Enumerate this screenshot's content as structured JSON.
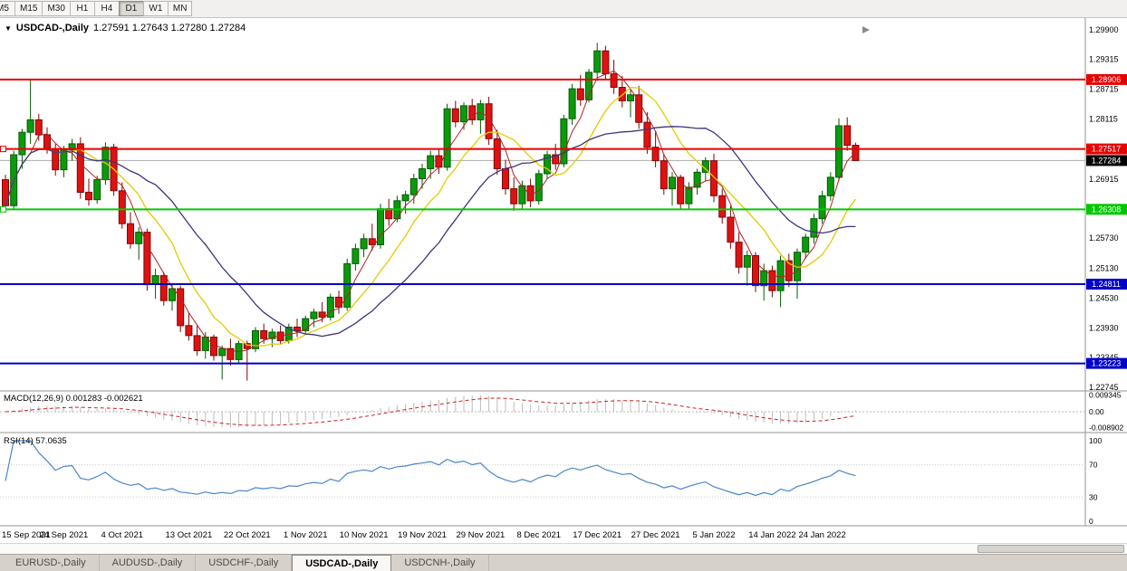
{
  "toolbar": {
    "timeframes": [
      "M5",
      "M15",
      "M30",
      "H1",
      "H4",
      "D1",
      "W1",
      "MN"
    ],
    "active": "D1"
  },
  "chart": {
    "symbol_label": "USDCAD-,Daily",
    "ohlc_label": "1.27591 1.27643 1.27280 1.27284"
  },
  "tabs": {
    "items": [
      "EURUSD-,Daily",
      "AUDUSD-,Daily",
      "USDCHF-,Daily",
      "USDCAD-,Daily",
      "USDCNH-,Daily"
    ],
    "active_index": 3
  },
  "chart_data": {
    "type": "candlestick",
    "symbol": "USDCAD",
    "timeframe": "Daily",
    "current_ohlc": {
      "open": "1.27591",
      "high": "1.27643",
      "low": "1.27280",
      "close": "1.27284"
    },
    "y_axis_ticks": [
      "1.29900",
      "1.29315",
      "1.28715",
      "1.28115",
      "1.26915",
      "1.25730",
      "1.25130",
      "1.24530",
      "1.23930",
      "1.23345",
      "1.22745"
    ],
    "horizontal_levels": [
      {
        "label": "1.28906",
        "value": 1.28906,
        "color": "#e80000",
        "type": "resistance"
      },
      {
        "label": "1.27517",
        "value": 1.27517,
        "color": "#e80000",
        "type": "resistance"
      },
      {
        "label": "1.26308",
        "value": 1.26308,
        "color": "#00c800",
        "type": "support"
      },
      {
        "label": "1.24811",
        "value": 1.24811,
        "color": "#0000c8",
        "type": "support"
      },
      {
        "label": "1.23223",
        "value": 1.23223,
        "color": "#0000c8",
        "type": "support"
      }
    ],
    "current_price": {
      "label": "1.27284",
      "value": 1.27284,
      "bg": "#000000"
    },
    "date_labels": [
      {
        "i": 0,
        "t": "15 Sep 2021"
      },
      {
        "i": 7,
        "t": "24 Sep 2021"
      },
      {
        "i": 14,
        "t": "4 Oct 2021"
      },
      {
        "i": 22,
        "t": "13 Oct 2021"
      },
      {
        "i": 29,
        "t": "22 Oct 2021"
      },
      {
        "i": 36,
        "t": "1 Nov 2021"
      },
      {
        "i": 43,
        "t": "10 Nov 2021"
      },
      {
        "i": 50,
        "t": "19 Nov 2021"
      },
      {
        "i": 57,
        "t": "29 Nov 2021"
      },
      {
        "i": 64,
        "t": "8 Dec 2021"
      },
      {
        "i": 71,
        "t": "17 Dec 2021"
      },
      {
        "i": 78,
        "t": "27 Dec 2021"
      },
      {
        "i": 85,
        "t": "5 Jan 2022"
      },
      {
        "i": 92,
        "t": "14 Jan 2022"
      },
      {
        "i": 98,
        "t": "24 Jan 2022"
      }
    ],
    "moving_averages": [
      {
        "period": 4,
        "color": "#b22222",
        "width": 1
      },
      {
        "period": 9,
        "color": "#e2cc00",
        "width": 1.3
      },
      {
        "period": 18,
        "color": "#3d3480",
        "width": 1.3
      }
    ],
    "macd": {
      "label": "MACD(12,26,9)",
      "main": "0.001283",
      "signal": "-0.002621",
      "fast": 12,
      "slow": 26,
      "smoothing": 9,
      "axis_ticks": [
        "0.009345",
        "0.00",
        "-0.008902"
      ]
    },
    "rsi": {
      "label": "RSI(14)",
      "value": "57.0635",
      "period": 14,
      "axis_ticks": [
        "100",
        "70",
        "30",
        "0"
      ]
    },
    "candles": [
      [
        1.269,
        1.27,
        1.2628,
        1.2638
      ],
      [
        1.2638,
        1.2748,
        1.2632,
        1.274
      ],
      [
        1.274,
        1.2792,
        1.2712,
        1.2785
      ],
      [
        1.2785,
        1.289,
        1.2762,
        1.281
      ],
      [
        1.281,
        1.2822,
        1.2768,
        1.278
      ],
      [
        1.278,
        1.2795,
        1.2742,
        1.2752
      ],
      [
        1.2752,
        1.2762,
        1.2698,
        1.271
      ],
      [
        1.271,
        1.2758,
        1.2695,
        1.275
      ],
      [
        1.275,
        1.2772,
        1.2728,
        1.2762
      ],
      [
        1.2762,
        1.2775,
        1.2652,
        1.2665
      ],
      [
        1.2665,
        1.2692,
        1.2638,
        1.265
      ],
      [
        1.265,
        1.2698,
        1.2642,
        1.269
      ],
      [
        1.269,
        1.2765,
        1.268,
        1.2755
      ],
      [
        1.2755,
        1.2762,
        1.2658,
        1.2668
      ],
      [
        1.2668,
        1.2685,
        1.2592,
        1.2602
      ],
      [
        1.2602,
        1.2625,
        1.2552,
        1.2562
      ],
      [
        1.2562,
        1.2595,
        1.253,
        1.2585
      ],
      [
        1.2585,
        1.2592,
        1.2468,
        1.248
      ],
      [
        1.248,
        1.2512,
        1.2452,
        1.2498
      ],
      [
        1.2498,
        1.2505,
        1.2438,
        1.2448
      ],
      [
        1.2448,
        1.2482,
        1.2428,
        1.2472
      ],
      [
        1.2472,
        1.2478,
        1.2385,
        1.2398
      ],
      [
        1.2398,
        1.2425,
        1.2368,
        1.2378
      ],
      [
        1.2378,
        1.2398,
        1.2338,
        1.2348
      ],
      [
        1.2348,
        1.2385,
        1.2332,
        1.2375
      ],
      [
        1.2375,
        1.238,
        1.2328,
        1.2338
      ],
      [
        1.2338,
        1.2358,
        1.229,
        1.2352
      ],
      [
        1.2352,
        1.2372,
        1.2318,
        1.233
      ],
      [
        1.233,
        1.2368,
        1.2322,
        1.2362
      ],
      [
        1.2362,
        1.2368,
        1.2288,
        1.2352
      ],
      [
        1.2352,
        1.2395,
        1.2345,
        1.2388
      ],
      [
        1.2388,
        1.2402,
        1.2362,
        1.2372
      ],
      [
        1.2372,
        1.2392,
        1.2355,
        1.2385
      ],
      [
        1.2385,
        1.2398,
        1.236,
        1.2368
      ],
      [
        1.2368,
        1.2402,
        1.2362,
        1.2395
      ],
      [
        1.2395,
        1.2412,
        1.2375,
        1.2388
      ],
      [
        1.2388,
        1.2418,
        1.238,
        1.2412
      ],
      [
        1.2412,
        1.2432,
        1.2395,
        1.2425
      ],
      [
        1.2425,
        1.2445,
        1.2405,
        1.2415
      ],
      [
        1.2415,
        1.2462,
        1.2408,
        1.2455
      ],
      [
        1.2455,
        1.2468,
        1.2422,
        1.2435
      ],
      [
        1.2435,
        1.2532,
        1.2428,
        1.2522
      ],
      [
        1.2522,
        1.2562,
        1.2508,
        1.2552
      ],
      [
        1.2552,
        1.2582,
        1.2535,
        1.2572
      ],
      [
        1.2572,
        1.2602,
        1.2548,
        1.256
      ],
      [
        1.256,
        1.2642,
        1.2552,
        1.2632
      ],
      [
        1.2632,
        1.2652,
        1.2598,
        1.2612
      ],
      [
        1.2612,
        1.2658,
        1.2605,
        1.2648
      ],
      [
        1.2648,
        1.2668,
        1.2622,
        1.266
      ],
      [
        1.266,
        1.2702,
        1.2642,
        1.2692
      ],
      [
        1.2692,
        1.2722,
        1.2672,
        1.2712
      ],
      [
        1.2712,
        1.2748,
        1.2692,
        1.2738
      ],
      [
        1.2738,
        1.2752,
        1.2702,
        1.2715
      ],
      [
        1.2715,
        1.2842,
        1.2708,
        1.2832
      ],
      [
        1.2832,
        1.2848,
        1.2795,
        1.2806
      ],
      [
        1.2806,
        1.2845,
        1.279,
        1.2838
      ],
      [
        1.2838,
        1.2852,
        1.28,
        1.281
      ],
      [
        1.281,
        1.285,
        1.2782,
        1.2842
      ],
      [
        1.2842,
        1.2856,
        1.276,
        1.2772
      ],
      [
        1.2772,
        1.279,
        1.27,
        1.2712
      ],
      [
        1.2712,
        1.273,
        1.266,
        1.2672
      ],
      [
        1.2672,
        1.2695,
        1.2628,
        1.2642
      ],
      [
        1.2642,
        1.2688,
        1.263,
        1.2678
      ],
      [
        1.2678,
        1.2692,
        1.2635,
        1.2648
      ],
      [
        1.2648,
        1.271,
        1.264,
        1.2702
      ],
      [
        1.2702,
        1.2748,
        1.2692,
        1.274
      ],
      [
        1.274,
        1.2762,
        1.271,
        1.2722
      ],
      [
        1.2722,
        1.282,
        1.2715,
        1.2812
      ],
      [
        1.2812,
        1.2882,
        1.28,
        1.2872
      ],
      [
        1.2872,
        1.29,
        1.2838,
        1.285
      ],
      [
        1.285,
        1.2912,
        1.2845,
        1.2905
      ],
      [
        1.2905,
        1.2964,
        1.2888,
        1.2948
      ],
      [
        1.2948,
        1.2958,
        1.289,
        1.2902
      ],
      [
        1.2902,
        1.293,
        1.2862,
        1.2875
      ],
      [
        1.2875,
        1.2898,
        1.2835,
        1.2848
      ],
      [
        1.2848,
        1.2872,
        1.2815,
        1.286
      ],
      [
        1.286,
        1.2878,
        1.2792,
        1.2805
      ],
      [
        1.2805,
        1.2825,
        1.2742,
        1.2755
      ],
      [
        1.2755,
        1.2788,
        1.2715,
        1.2728
      ],
      [
        1.2728,
        1.2742,
        1.266,
        1.2672
      ],
      [
        1.2672,
        1.2705,
        1.2638,
        1.2695
      ],
      [
        1.2695,
        1.27,
        1.263,
        1.2642
      ],
      [
        1.2642,
        1.2685,
        1.2632,
        1.2675
      ],
      [
        1.2675,
        1.2712,
        1.266,
        1.2705
      ],
      [
        1.2705,
        1.2735,
        1.2688,
        1.2728
      ],
      [
        1.2728,
        1.2742,
        1.2645,
        1.2658
      ],
      [
        1.2658,
        1.2672,
        1.2602,
        1.2615
      ],
      [
        1.2615,
        1.2638,
        1.2552,
        1.2565
      ],
      [
        1.2565,
        1.2585,
        1.2502,
        1.2515
      ],
      [
        1.2515,
        1.2548,
        1.2478,
        1.2538
      ],
      [
        1.2538,
        1.2545,
        1.2465,
        1.2478
      ],
      [
        1.2478,
        1.2522,
        1.2448,
        1.2508
      ],
      [
        1.2508,
        1.2518,
        1.2455,
        1.2468
      ],
      [
        1.2468,
        1.2538,
        1.2435,
        1.2528
      ],
      [
        1.2528,
        1.2542,
        1.2475,
        1.2488
      ],
      [
        1.2488,
        1.2552,
        1.2452,
        1.2545
      ],
      [
        1.2545,
        1.2582,
        1.2532,
        1.2575
      ],
      [
        1.2575,
        1.2622,
        1.2562,
        1.2612
      ],
      [
        1.2612,
        1.2668,
        1.2602,
        1.2658
      ],
      [
        1.2658,
        1.2705,
        1.2648,
        1.2695
      ],
      [
        1.2695,
        1.2813,
        1.2688,
        1.2798
      ],
      [
        1.2798,
        1.2815,
        1.2748,
        1.2759
      ],
      [
        1.27591,
        1.27643,
        1.2728,
        1.27284
      ]
    ]
  }
}
